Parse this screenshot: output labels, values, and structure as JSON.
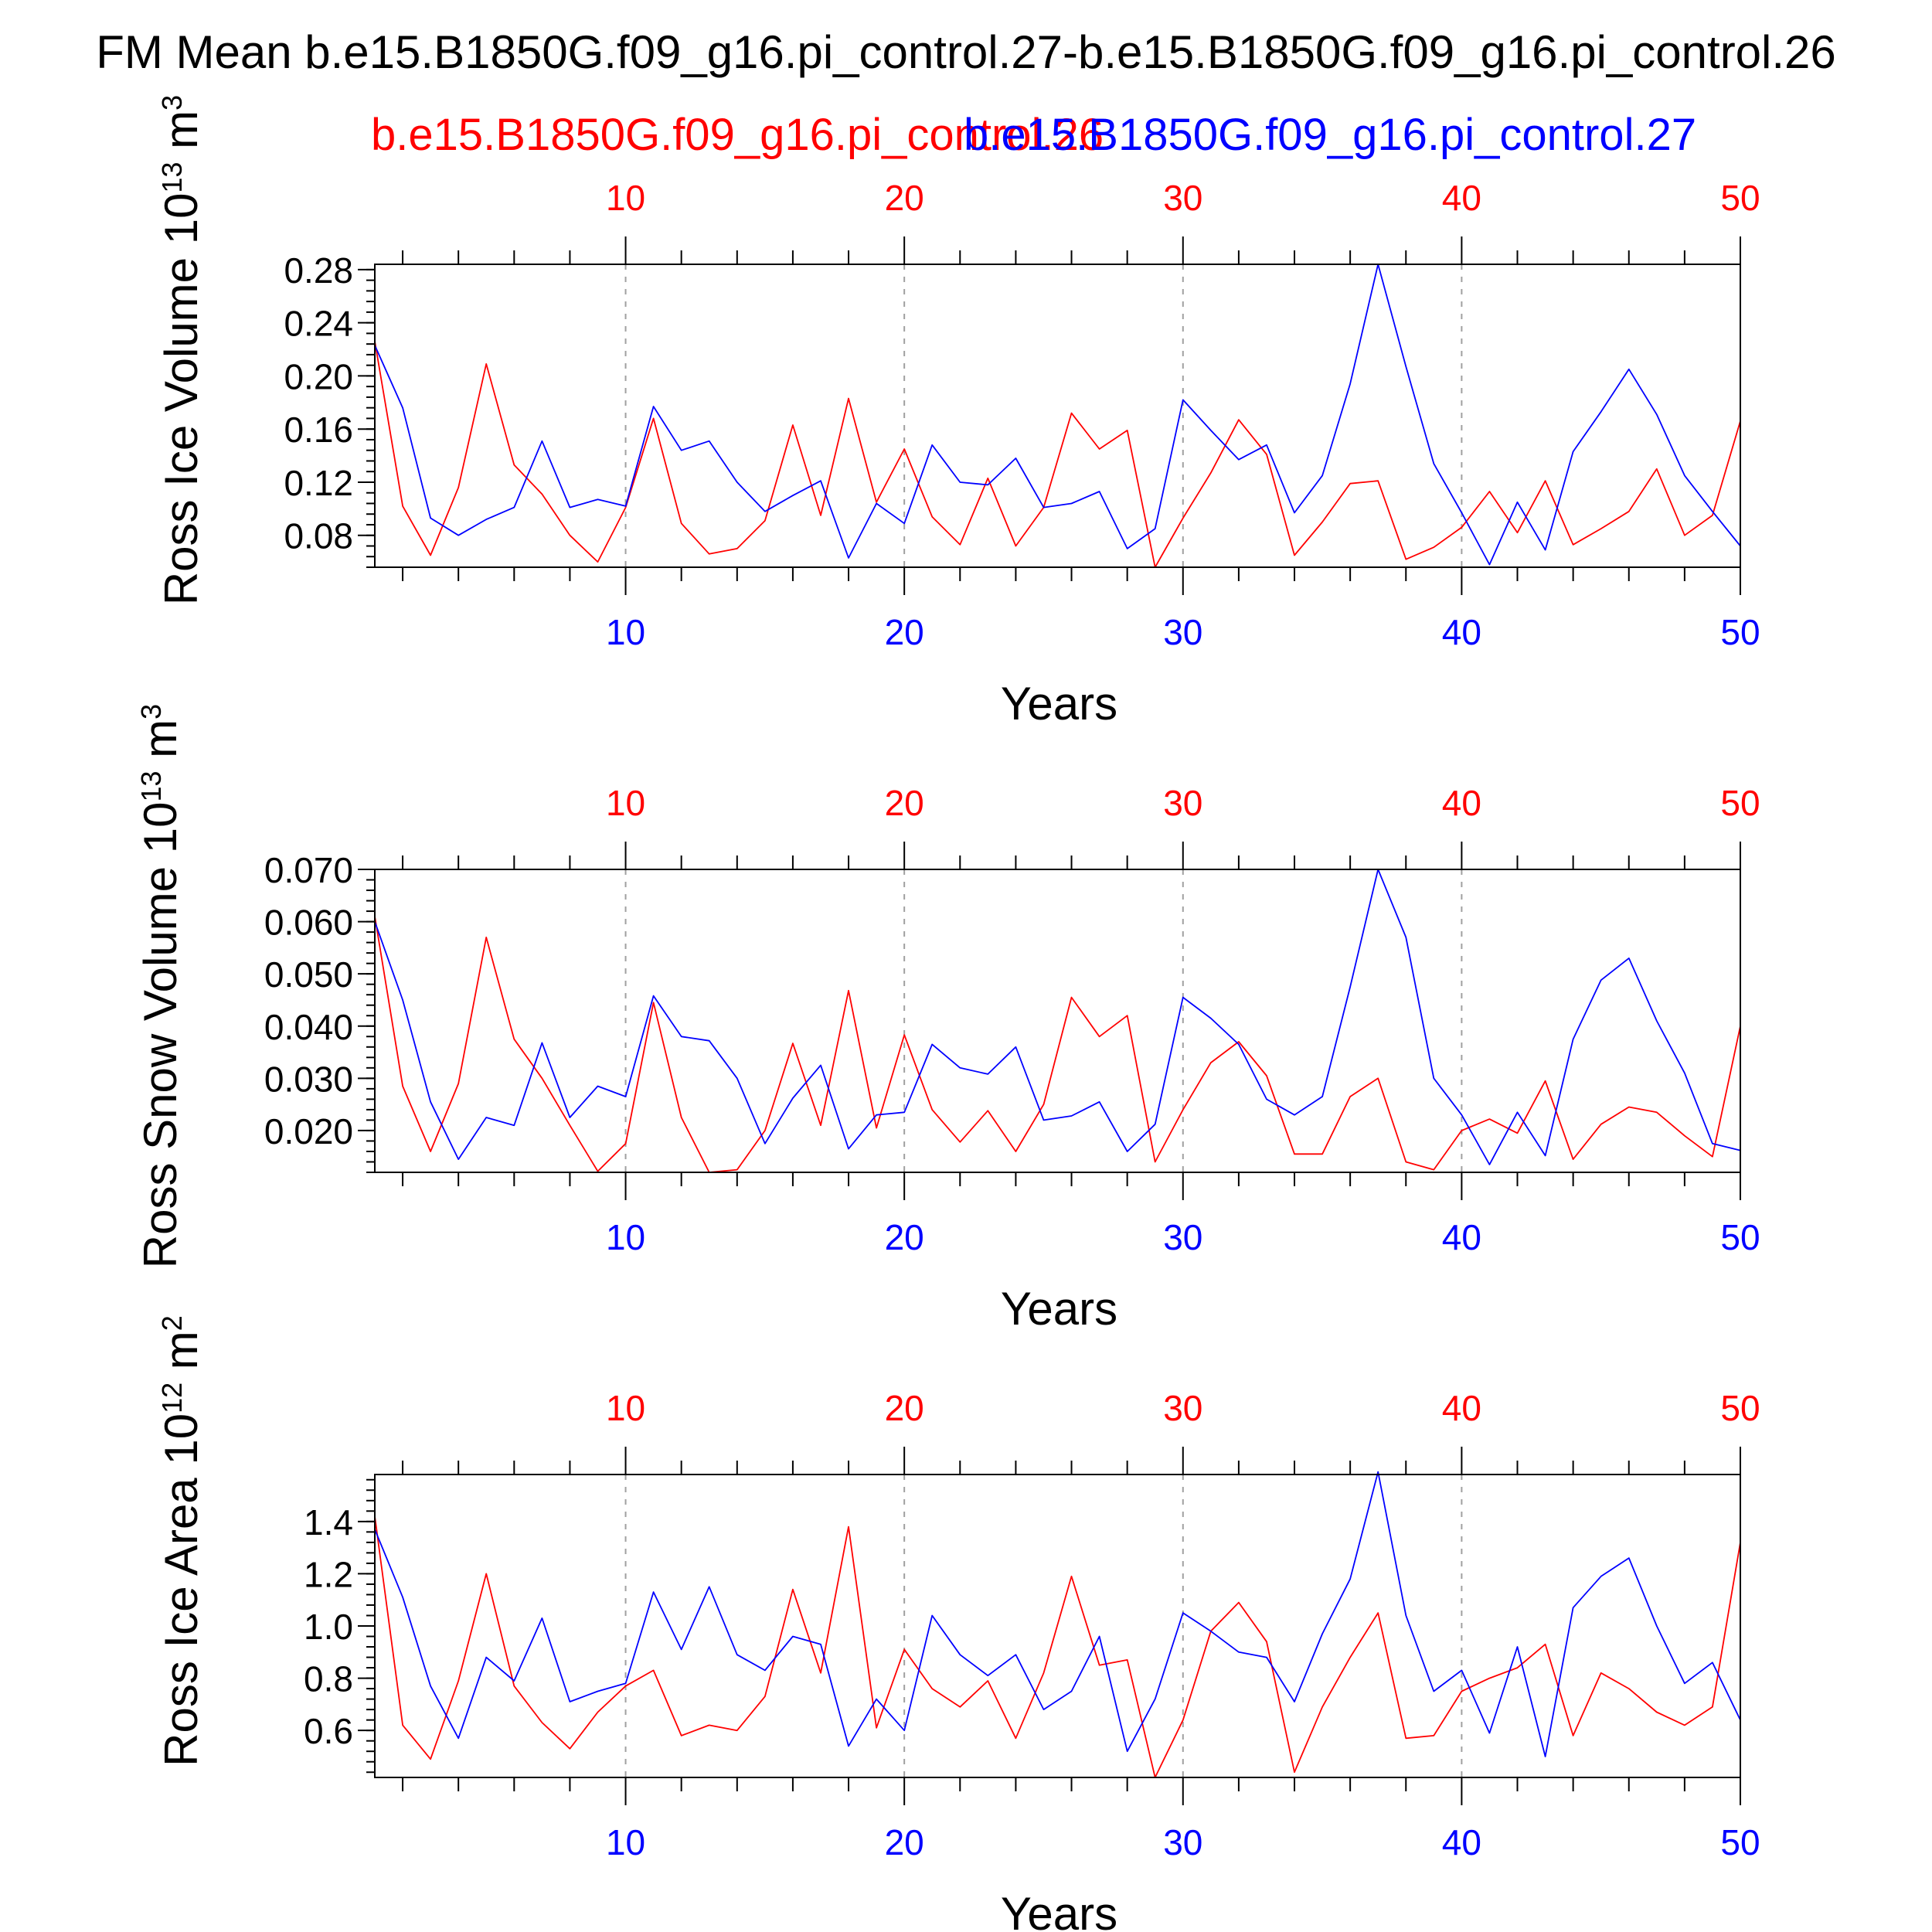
{
  "title": "FM Mean b.e15.B1850G.f09_g16.pi_control.27-b.e15.B1850G.f09_g16.pi_control.26",
  "legend": {
    "red_label": "b.e15.B1850G.f09_g16.pi_control.26",
    "blue_label": "b.e15.B1850G.f09_g16.pi_control.27"
  },
  "colors": {
    "red": "#ff0000",
    "blue": "#0000ff",
    "frame": "#000000",
    "grid": "#a0a0a0"
  },
  "chart_data": [
    {
      "type": "line",
      "ylabel": "Ross Ice Volume 10",
      "ylabel_exp": "13",
      "ylabel_unit": " m",
      "ylabel_unit_exp": "3",
      "xlabel": "Years",
      "xlim": [
        1,
        50
      ],
      "ylim": [
        0.056,
        0.284
      ],
      "y_ticks": [
        0.08,
        0.12,
        0.16,
        0.2,
        0.24,
        0.28
      ],
      "y_tick_labels": [
        "0.08",
        "0.12",
        "0.16",
        "0.20",
        "0.24",
        "0.28"
      ],
      "y_minor_step": 0.008,
      "x_ticks": [
        10,
        20,
        30,
        40,
        50
      ],
      "x_tick_labels": [
        "10",
        "20",
        "30",
        "40",
        "50"
      ],
      "x": [
        1,
        2,
        3,
        4,
        5,
        6,
        7,
        8,
        9,
        10,
        11,
        12,
        13,
        14,
        15,
        16,
        17,
        18,
        19,
        20,
        21,
        22,
        23,
        24,
        25,
        26,
        27,
        28,
        29,
        30,
        31,
        32,
        33,
        34,
        35,
        36,
        37,
        38,
        39,
        40,
        41,
        42,
        43,
        44,
        45,
        46,
        47,
        48,
        49,
        50
      ],
      "series": [
        {
          "color": "red",
          "values": [
            0.226,
            0.102,
            0.065,
            0.116,
            0.209,
            0.133,
            0.111,
            0.08,
            0.06,
            0.101,
            0.168,
            0.089,
            0.066,
            0.07,
            0.091,
            0.163,
            0.095,
            0.183,
            0.105,
            0.145,
            0.094,
            0.073,
            0.123,
            0.072,
            0.101,
            0.172,
            0.145,
            0.159,
            0.056,
            0.093,
            0.127,
            0.167,
            0.141,
            0.065,
            0.09,
            0.119,
            0.121,
            0.062,
            0.071,
            0.086,
            0.113,
            0.082,
            0.121,
            0.073,
            0.085,
            0.098,
            0.13,
            0.08,
            0.095,
            0.166
          ]
        },
        {
          "color": "blue",
          "values": [
            0.223,
            0.176,
            0.093,
            0.08,
            0.092,
            0.101,
            0.151,
            0.101,
            0.107,
            0.102,
            0.177,
            0.144,
            0.151,
            0.12,
            0.098,
            0.11,
            0.121,
            0.063,
            0.104,
            0.089,
            0.148,
            0.12,
            0.118,
            0.138,
            0.101,
            0.104,
            0.113,
            0.07,
            0.085,
            0.182,
            0.159,
            0.137,
            0.148,
            0.097,
            0.125,
            0.194,
            0.284,
            0.207,
            0.134,
            0.097,
            0.058,
            0.105,
            0.069,
            0.143,
            0.173,
            0.205,
            0.171,
            0.125,
            0.098,
            0.072
          ]
        }
      ]
    },
    {
      "type": "line",
      "ylabel": "Ross Snow Volume 10",
      "ylabel_exp": "13",
      "ylabel_unit": " m",
      "ylabel_unit_exp": "3",
      "xlabel": "Years",
      "xlim": [
        1,
        50
      ],
      "ylim": [
        0.012,
        0.07
      ],
      "y_ticks": [
        0.02,
        0.03,
        0.04,
        0.05,
        0.06,
        0.07
      ],
      "y_tick_labels": [
        "0.020",
        "0.030",
        "0.040",
        "0.050",
        "0.060",
        "0.070"
      ],
      "y_minor_step": 0.002,
      "x_ticks": [
        10,
        20,
        30,
        40,
        50
      ],
      "x_tick_labels": [
        "10",
        "20",
        "30",
        "40",
        "50"
      ],
      "x": [
        1,
        2,
        3,
        4,
        5,
        6,
        7,
        8,
        9,
        10,
        11,
        12,
        13,
        14,
        15,
        16,
        17,
        18,
        19,
        20,
        21,
        22,
        23,
        24,
        25,
        26,
        27,
        28,
        29,
        30,
        31,
        32,
        33,
        34,
        35,
        36,
        37,
        38,
        39,
        40,
        41,
        42,
        43,
        44,
        45,
        46,
        47,
        48,
        49,
        50
      ],
      "series": [
        {
          "color": "red",
          "values": [
            0.061,
            0.0285,
            0.016,
            0.029,
            0.057,
            0.0375,
            0.03,
            0.021,
            0.0122,
            0.0175,
            0.0445,
            0.0225,
            0.012,
            0.0125,
            0.02,
            0.0367,
            0.021,
            0.0468,
            0.0205,
            0.0383,
            0.024,
            0.0178,
            0.0238,
            0.016,
            0.025,
            0.0455,
            0.038,
            0.042,
            0.014,
            0.024,
            0.033,
            0.037,
            0.0305,
            0.0155,
            0.0155,
            0.0265,
            0.03,
            0.014,
            0.0125,
            0.02,
            0.0222,
            0.0195,
            0.0295,
            0.0145,
            0.0212,
            0.0245,
            0.0235,
            0.019,
            0.015,
            0.04
          ]
        },
        {
          "color": "blue",
          "values": [
            0.06,
            0.045,
            0.0255,
            0.0145,
            0.0225,
            0.021,
            0.0368,
            0.0225,
            0.0285,
            0.0265,
            0.0458,
            0.038,
            0.0372,
            0.03,
            0.0175,
            0.0262,
            0.0325,
            0.0165,
            0.023,
            0.0235,
            0.0365,
            0.032,
            0.0308,
            0.036,
            0.022,
            0.0228,
            0.0255,
            0.016,
            0.0212,
            0.0455,
            0.0415,
            0.0365,
            0.026,
            0.023,
            0.0265,
            0.0475,
            0.07,
            0.057,
            0.03,
            0.023,
            0.0135,
            0.0235,
            0.0152,
            0.0375,
            0.0488,
            0.053,
            0.041,
            0.031,
            0.0175,
            0.0162
          ]
        }
      ]
    },
    {
      "type": "line",
      "ylabel": "Ross Ice Area 10",
      "ylabel_exp": "12",
      "ylabel_unit": " m",
      "ylabel_unit_exp": "2",
      "xlabel": "Years",
      "xlim": [
        1,
        50
      ],
      "ylim": [
        0.42,
        1.58
      ],
      "y_ticks": [
        0.6,
        0.8,
        1.0,
        1.2,
        1.4
      ],
      "y_tick_labels": [
        "0.6",
        "0.8",
        "1.0",
        "1.2",
        "1.4"
      ],
      "y_minor_step": 0.04,
      "x_ticks": [
        10,
        20,
        30,
        40,
        50
      ],
      "x_tick_labels": [
        "10",
        "20",
        "30",
        "40",
        "50"
      ],
      "x": [
        1,
        2,
        3,
        4,
        5,
        6,
        7,
        8,
        9,
        10,
        11,
        12,
        13,
        14,
        15,
        16,
        17,
        18,
        19,
        20,
        21,
        22,
        23,
        24,
        25,
        26,
        27,
        28,
        29,
        30,
        31,
        32,
        33,
        34,
        35,
        36,
        37,
        38,
        39,
        40,
        41,
        42,
        43,
        44,
        45,
        46,
        47,
        48,
        49,
        50
      ],
      "series": [
        {
          "color": "red",
          "values": [
            1.42,
            0.62,
            0.49,
            0.79,
            1.2,
            0.77,
            0.63,
            0.53,
            0.67,
            0.77,
            0.83,
            0.58,
            0.62,
            0.6,
            0.73,
            1.14,
            0.82,
            1.38,
            0.61,
            0.91,
            0.76,
            0.69,
            0.79,
            0.57,
            0.82,
            1.19,
            0.85,
            0.87,
            0.42,
            0.64,
            0.98,
            1.09,
            0.94,
            0.44,
            0.69,
            0.88,
            1.05,
            0.57,
            0.58,
            0.75,
            0.8,
            0.84,
            0.93,
            0.58,
            0.82,
            0.76,
            0.67,
            0.62,
            0.69,
            1.32
          ]
        },
        {
          "color": "blue",
          "values": [
            1.37,
            1.11,
            0.77,
            0.57,
            0.88,
            0.79,
            1.03,
            0.71,
            0.75,
            0.78,
            1.13,
            0.91,
            1.15,
            0.89,
            0.83,
            0.96,
            0.93,
            0.54,
            0.72,
            0.6,
            1.04,
            0.89,
            0.81,
            0.89,
            0.68,
            0.75,
            0.96,
            0.52,
            0.72,
            1.05,
            0.98,
            0.9,
            0.88,
            0.71,
            0.97,
            1.18,
            1.59,
            1.04,
            0.75,
            0.83,
            0.59,
            0.92,
            0.5,
            1.07,
            1.19,
            1.26,
            1.0,
            0.78,
            0.86,
            0.64
          ]
        }
      ]
    }
  ]
}
